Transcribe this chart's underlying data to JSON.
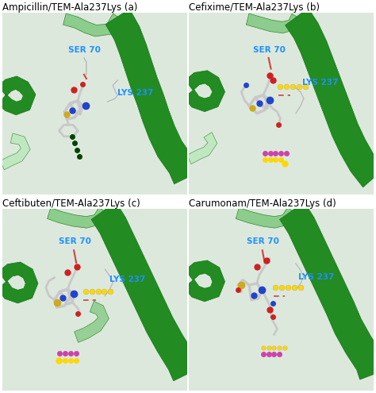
{
  "panels": [
    {
      "title": "Ampicillin/TEM-Ala237Lys (a)",
      "ser_label": "SER 70",
      "lys_label": "LYS 237"
    },
    {
      "title": "Cefixime/TEM-Ala237Lys (b)",
      "ser_label": "SER 70",
      "lys_label": "LYS 237"
    },
    {
      "title": "Ceftibuten/TEM-Ala237Lys (c)",
      "ser_label": "SER 70",
      "lys_label": "LYS 237"
    },
    {
      "title": "Carumonam/TEM-Ala237Lys (d)",
      "ser_label": "SER 70",
      "lys_label": "LYS 237"
    }
  ],
  "helix_dark": "#1a7a1a",
  "helix_mid": "#228B22",
  "helix_light": "#7ec87e",
  "helix_pale": "#b5e8b5",
  "bg_color": "#f0f0f0",
  "panel_bg": "#dde8dd",
  "label_color": "#1E90FF",
  "title_fontsize": 8.5,
  "label_fontsize": 7.5,
  "figsize": [
    4.74,
    4.95
  ],
  "dpi": 100
}
